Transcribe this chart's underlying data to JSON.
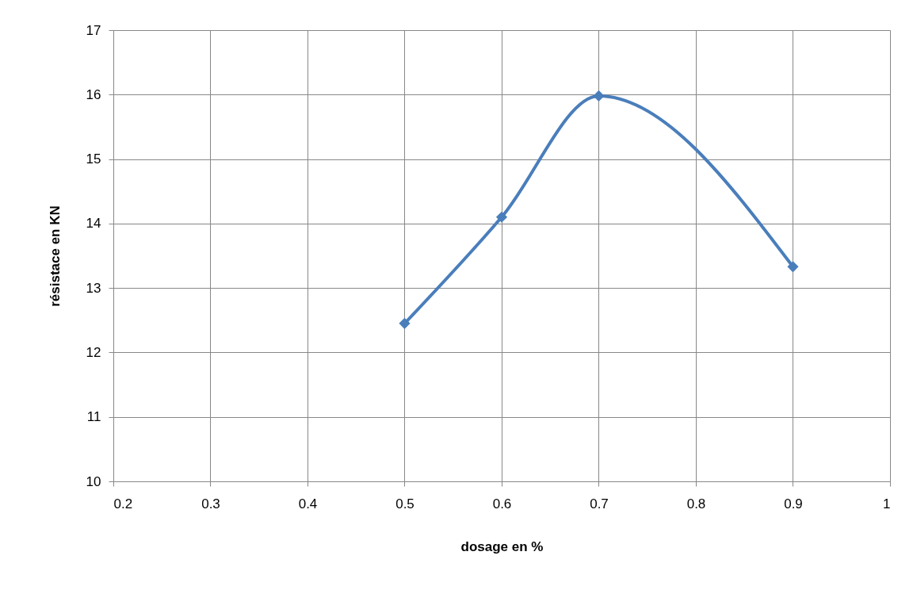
{
  "chart_data": {
    "type": "line",
    "xlabel": "dosage en %",
    "ylabel": "résistace en KN",
    "x": [
      0.5,
      0.6,
      0.7,
      0.9
    ],
    "series": [
      {
        "color": "#4a7ebb",
        "values": [
          12.45,
          14.1,
          15.98,
          13.33
        ]
      }
    ],
    "xlim": [
      0.2,
      1
    ],
    "xticks": [
      0.2,
      0.3,
      0.4,
      0.5,
      0.6,
      0.7,
      0.8,
      0.9,
      1
    ],
    "ylim": [
      10,
      17
    ],
    "yticks": [
      10,
      11,
      12,
      13,
      14,
      15,
      16,
      17
    ],
    "grid": true,
    "marker": "diamond",
    "line_style": "solid"
  }
}
